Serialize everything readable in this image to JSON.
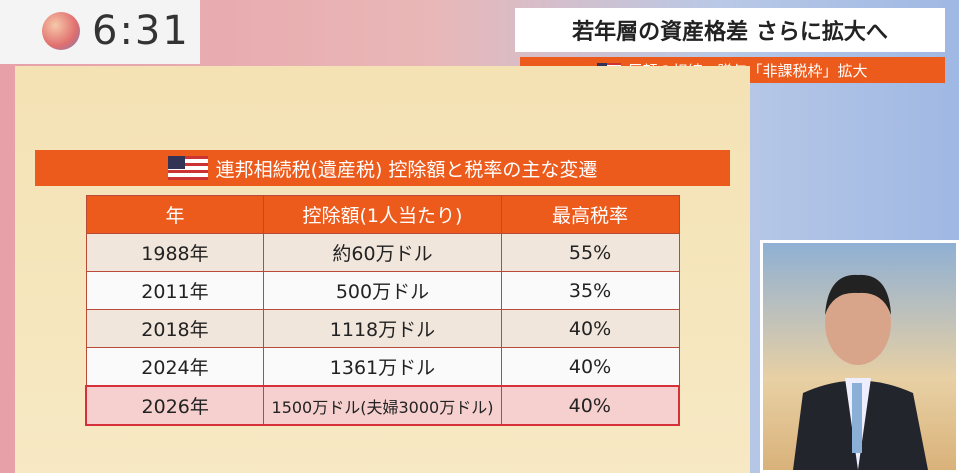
{
  "clock": "6:31",
  "headline": "若年層の資産格差 さらに拡大へ",
  "subheadline": "巨額の相続・贈与「非課税枠」拡大",
  "table": {
    "title": "連邦相続税(遺産税) 控除額と税率の主な変遷",
    "header": [
      "年",
      "控除額(1人当たり)",
      "最高税率"
    ],
    "rows": [
      [
        "1988年",
        "約60万ドル",
        "55%"
      ],
      [
        "2011年",
        "500万ドル",
        "35%"
      ],
      [
        "2018年",
        "1118万ドル",
        "40%"
      ],
      [
        "2024年",
        "1361万ドル",
        "40%"
      ],
      [
        "2026年",
        "1500万ドル(夫婦3000万ドル)",
        "40%"
      ]
    ]
  }
}
